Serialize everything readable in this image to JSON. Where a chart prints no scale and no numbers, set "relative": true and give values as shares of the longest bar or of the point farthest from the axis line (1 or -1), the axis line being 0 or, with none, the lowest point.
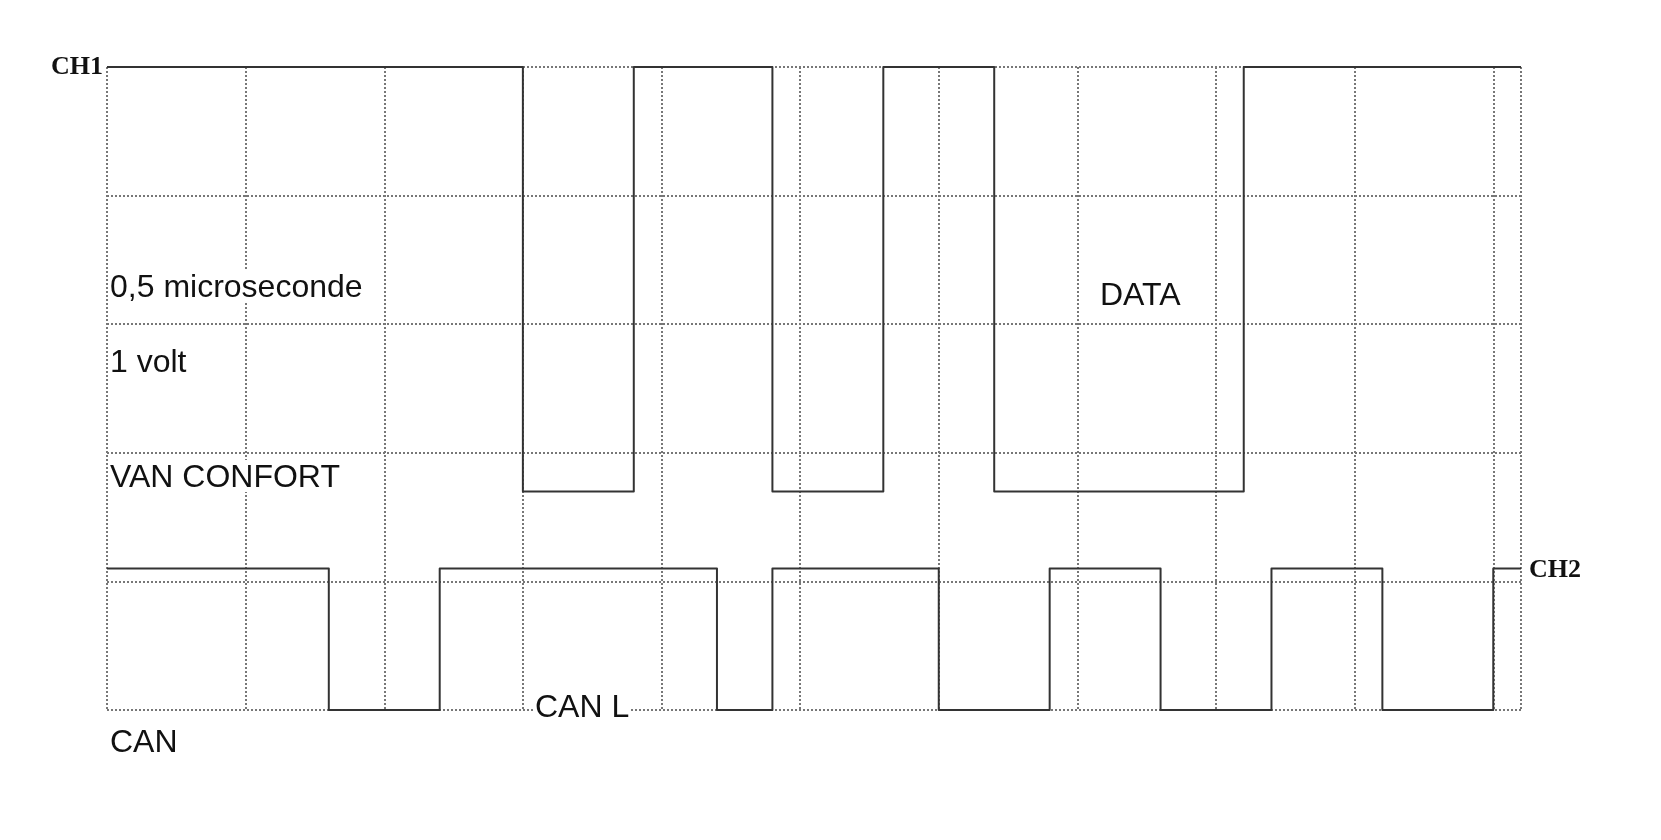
{
  "chart_data": {
    "type": "step",
    "relative": true,
    "grid": true,
    "marker": "none",
    "line_style": "solid",
    "legend": false,
    "categories": [
      null,
      null,
      null,
      null,
      null,
      null,
      null,
      null,
      null,
      null,
      null,
      null,
      null,
      null,
      null,
      null,
      null,
      null,
      null,
      null,
      null,
      null,
      null,
      null,
      null,
      null,
      null,
      null,
      null,
      null,
      null,
      null,
      null,
      null,
      null,
      null,
      null,
      null,
      null,
      null,
      null,
      null,
      null,
      null,
      null,
      null,
      null,
      null,
      null,
      null,
      null,
      null
    ],
    "series": [
      {
        "name": "CH1",
        "color": "#333333",
        "values": [
          1,
          1,
          1,
          1,
          1,
          1,
          1,
          1,
          1,
          1,
          1,
          1,
          1,
          1,
          1,
          0.34,
          0.34,
          0.34,
          0.34,
          1,
          1,
          1,
          1,
          1,
          0.34,
          0.34,
          0.34,
          0.34,
          1,
          1,
          1,
          1,
          0.34,
          0.34,
          0.34,
          0.34,
          0.34,
          0.34,
          0.34,
          0.34,
          0.34,
          1,
          1,
          1,
          1,
          1,
          1,
          1,
          1,
          1,
          1,
          1
        ]
      },
      {
        "name": "CH2",
        "color": "#333333",
        "values": [
          0.22,
          0.22,
          0.22,
          0.22,
          0.22,
          0.22,
          0.22,
          0.22,
          0,
          0,
          0,
          0,
          0.22,
          0.22,
          0.22,
          0.22,
          0.22,
          0.22,
          0.22,
          0.22,
          0.22,
          0.22,
          0,
          0,
          0.22,
          0.22,
          0.22,
          0.22,
          0.22,
          0.22,
          0,
          0,
          0,
          0,
          0.22,
          0.22,
          0.22,
          0.22,
          0,
          0,
          0,
          0,
          0.22,
          0.22,
          0.22,
          0.22,
          0,
          0,
          0,
          0,
          0.22,
          0.22
        ]
      }
    ],
    "annotations": [
      "0,5 microseconde",
      "1 volt",
      "VAN CONFORT",
      "CAN",
      "CAN L",
      "DATA"
    ]
  }
}
